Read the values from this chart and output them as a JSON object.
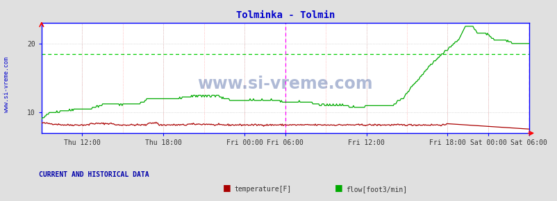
{
  "title": "Tolminka - Tolmin",
  "title_color": "#0000cc",
  "bg_color": "#e0e0e0",
  "plot_bg_color": "#ffffff",
  "grid_color_major": "#c0c0c0",
  "grid_color_minor": "#ffaaaa",
  "axis_color": "#0000ff",
  "ylabel_left_color": "#0000cc",
  "watermark": "www.si-vreme.com",
  "watermark_color": "#1a3a8a",
  "ylim": [
    7,
    23
  ],
  "yticks": [
    10,
    20
  ],
  "n_points": 576,
  "tick_labels": [
    "Thu 12:00",
    "Thu 18:00",
    "Fri 00:00",
    "Fri 06:00",
    "Fri 12:00",
    "Fri 18:00",
    "Sat 00:00",
    "Sat 06:00"
  ],
  "tick_positions": [
    0.083,
    0.25,
    0.417,
    0.5,
    0.667,
    0.833,
    0.917,
    1.0
  ],
  "temp_color": "#aa0000",
  "flow_color": "#00aa00",
  "vline_color": "#ff00ff",
  "hline_color": "#00cc00",
  "hline_y": 18.5,
  "bottom_text": "CURRENT AND HISTORICAL DATA",
  "bottom_text_color": "#0000aa",
  "legend_items": [
    "temperature[F]",
    "flow[foot3/min]"
  ],
  "legend_colors": [
    "#aa0000",
    "#00aa00"
  ]
}
